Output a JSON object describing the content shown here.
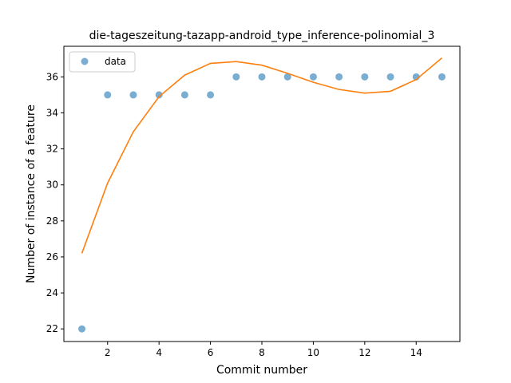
{
  "chart_data": {
    "type": "scatter",
    "title": "die-tageszeitung-tazapp-android_type_inference-polinomial_3",
    "xlabel": "Commit number",
    "ylabel": "Number of instance of a feature",
    "xlim": [
      0.3,
      15.7
    ],
    "ylim": [
      21.3,
      37.7
    ],
    "xticks": [
      2,
      4,
      6,
      8,
      10,
      12,
      14
    ],
    "yticks": [
      22,
      24,
      26,
      28,
      30,
      32,
      34,
      36
    ],
    "legend": {
      "placement": "top-left",
      "entries": [
        "data"
      ]
    },
    "grid": false,
    "series": [
      {
        "name": "data",
        "kind": "points",
        "color": "#1f77b4",
        "x": [
          1,
          2,
          3,
          4,
          5,
          6,
          7,
          8,
          9,
          10,
          11,
          12,
          13,
          14,
          15
        ],
        "y": [
          22,
          35,
          35,
          35,
          35,
          35,
          36,
          36,
          36,
          36,
          36,
          36,
          36,
          36,
          36
        ]
      },
      {
        "kind": "line",
        "color": "#ff7f0e",
        "x": [
          1,
          2,
          3,
          4,
          5,
          6,
          7,
          8,
          9,
          10,
          11,
          12,
          13,
          14,
          15
        ],
        "y": [
          26.2,
          30.1,
          32.95,
          34.9,
          36.1,
          36.75,
          36.85,
          36.65,
          36.2,
          35.7,
          35.3,
          35.1,
          35.2,
          35.85,
          37.05
        ]
      }
    ]
  }
}
